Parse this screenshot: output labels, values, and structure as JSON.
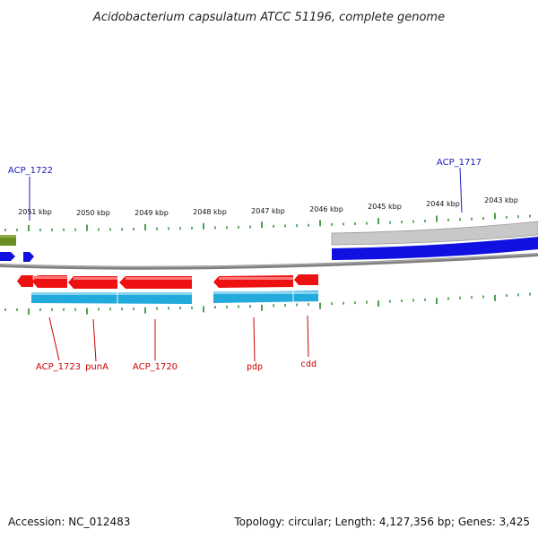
{
  "title": "Acidobacterium capsulatum ATCC 51196, complete genome",
  "accession": "Accession: NC_012483",
  "summary": "Topology: circular; Length: 4,127,356 bp; Genes: 3,425",
  "colors": {
    "forward_gene": "#1010e0",
    "reverse_gene": "#ee1111",
    "reverse_cds": "#22aadd",
    "forward_cds": "#c8c8c8",
    "backbone": "#808080",
    "tick": "#228822",
    "olive": "#6b8e23"
  },
  "ticks": [
    {
      "label": "2051 kbp"
    },
    {
      "label": "2050 kbp"
    },
    {
      "label": "2049 kbp"
    },
    {
      "label": "2048 kbp"
    },
    {
      "label": "2047 kbp"
    },
    {
      "label": "2046 kbp"
    },
    {
      "label": "2045 kbp"
    },
    {
      "label": "2044 kbp"
    },
    {
      "label": "2043 kbp"
    }
  ],
  "genes": {
    "acp1722": "ACP_1722",
    "acp1717": "ACP_1717",
    "acp1723": "ACP_1723",
    "puna": "punA",
    "acp1720": "ACP_1720",
    "pdp": "pdp",
    "cdd": "cdd"
  }
}
